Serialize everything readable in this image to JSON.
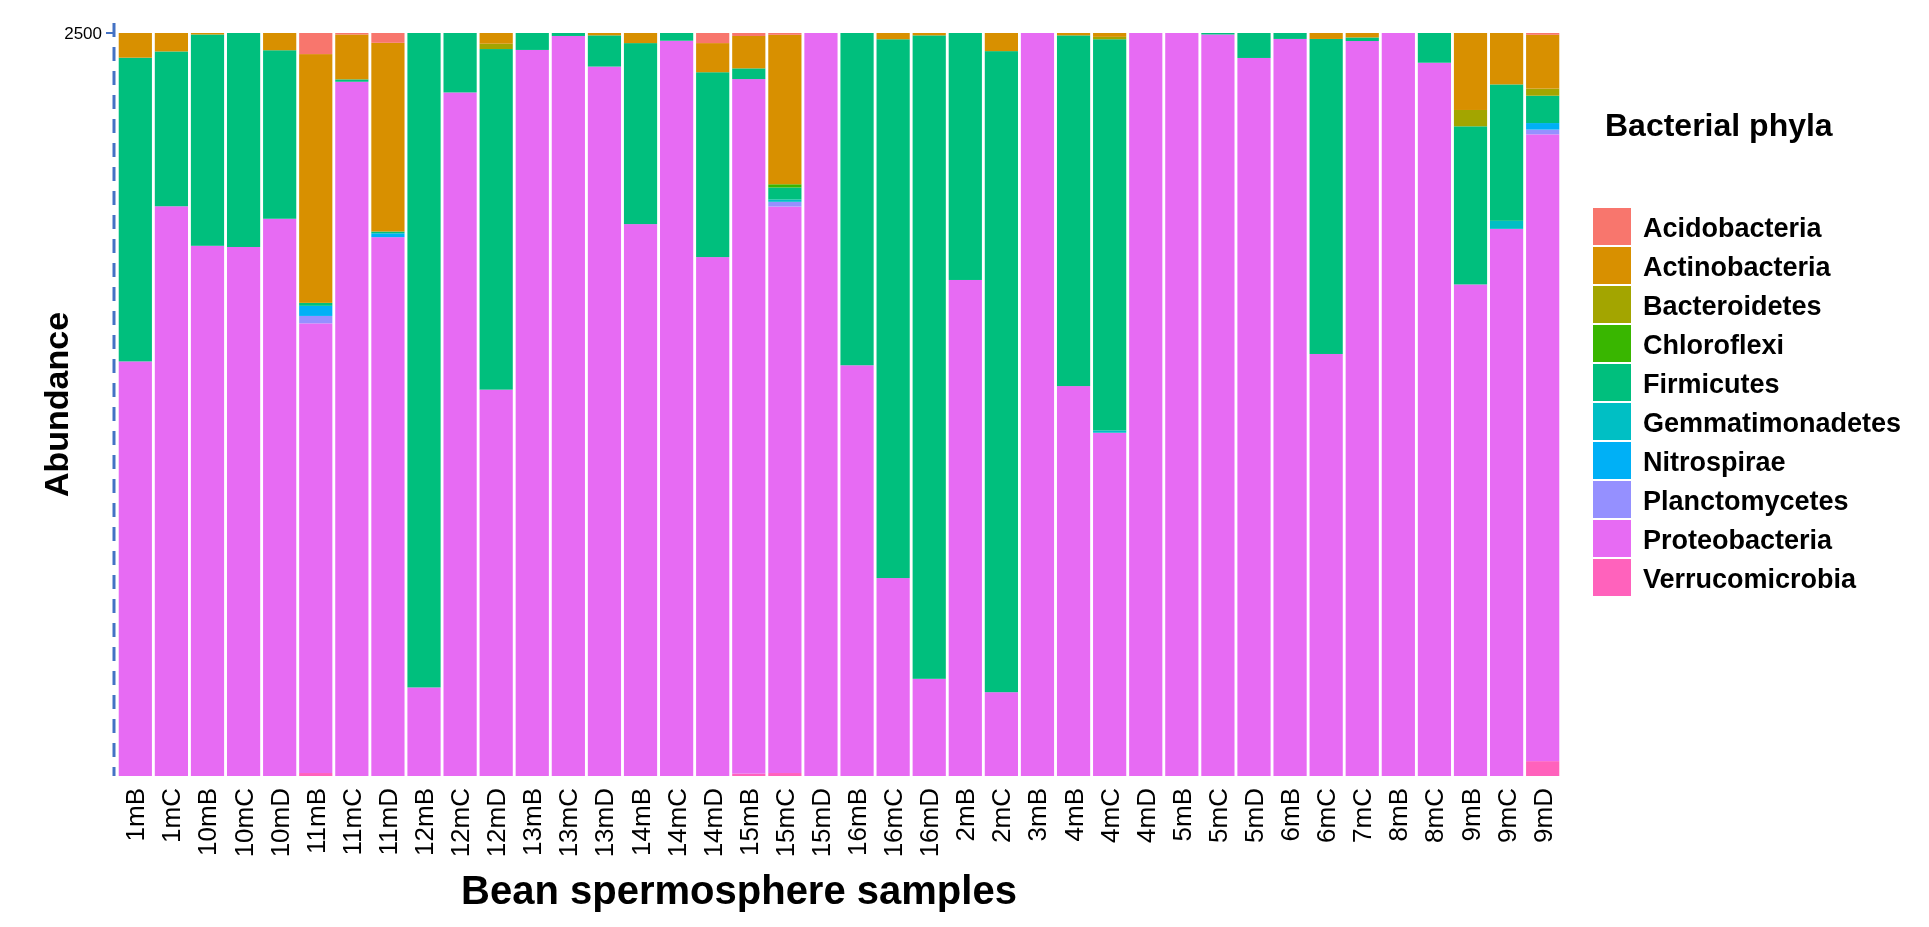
{
  "chart_data": {
    "type": "bar",
    "stacked": true,
    "xlabel": "Bean spermosphere samples",
    "ylabel": "Abundance",
    "legend_title": "Bacterial phyla",
    "legend": "right",
    "ylim": [
      0,
      2500
    ],
    "yticks": [
      2500
    ],
    "categories": [
      "1mB",
      "1mC",
      "10mB",
      "10mC",
      "10mD",
      "11mB",
      "11mC",
      "11mD",
      "12mB",
      "12mC",
      "12mD",
      "13mB",
      "13mC",
      "13mD",
      "14mB",
      "14mC",
      "14mD",
      "15mB",
      "15mC",
      "15mD",
      "16mB",
      "16mC",
      "16mD",
      "2mB",
      "2mC",
      "3mB",
      "4mB",
      "4mC",
      "4mD",
      "5mB",
      "5mC",
      "5mD",
      "6mB",
      "6mC",
      "7mC",
      "8mB",
      "8mC",
      "9mB",
      "9mC",
      "9mD"
    ],
    "series": [
      {
        "name": "Verrucomicrobia",
        "color": "#ff62bc",
        "values": [
          0,
          0,
          0,
          0,
          0,
          10,
          0,
          0,
          0,
          0,
          0,
          0,
          0,
          0,
          0,
          0,
          0,
          8,
          10,
          0,
          0,
          0,
          0,
          0,
          0,
          0,
          0,
          0,
          0,
          0,
          0,
          0,
          0,
          0,
          0,
          0,
          0,
          0,
          0,
          50
        ]
      },
      {
        "name": "Proteobacteria",
        "color": "#e76bf3",
        "values": [
          1395,
          1917,
          1784,
          1780,
          1875,
          1513,
          2336,
          1813,
          298,
          2300,
          1300,
          2443,
          2490,
          2387,
          1857,
          2474,
          1746,
          2337,
          1906,
          2500,
          1382,
          666,
          327,
          1669,
          282,
          2500,
          1312,
          1155,
          2500,
          2500,
          2495,
          2416,
          2480,
          1420,
          2473,
          2500,
          2400,
          1654,
          1841,
          2109
        ]
      },
      {
        "name": "Planctomycetes",
        "color": "#9590ff",
        "values": [
          0,
          0,
          0,
          0,
          0,
          25,
          0,
          0,
          0,
          0,
          0,
          0,
          0,
          0,
          0,
          0,
          0,
          0,
          16,
          0,
          0,
          0,
          0,
          0,
          0,
          0,
          0,
          0,
          0,
          0,
          0,
          0,
          0,
          0,
          0,
          0,
          0,
          0,
          0,
          16
        ]
      },
      {
        "name": "Nitrospirae",
        "color": "#00b0f6",
        "values": [
          0,
          0,
          0,
          0,
          0,
          34,
          0,
          13,
          0,
          0,
          0,
          0,
          0,
          0,
          0,
          0,
          0,
          0,
          0,
          0,
          0,
          0,
          0,
          0,
          0,
          0,
          0,
          0,
          0,
          0,
          0,
          0,
          0,
          0,
          0,
          0,
          0,
          0,
          0,
          22
        ]
      },
      {
        "name": "Gemmatimonadetes",
        "color": "#00bfc4",
        "values": [
          0,
          0,
          0,
          0,
          0,
          0,
          0,
          0,
          0,
          0,
          0,
          0,
          0,
          0,
          0,
          0,
          0,
          0,
          8,
          0,
          0,
          0,
          0,
          0,
          0,
          0,
          0,
          8,
          0,
          0,
          0,
          0,
          0,
          0,
          0,
          0,
          0,
          0,
          27,
          0
        ]
      },
      {
        "name": "Firmicutes",
        "color": "#00bf7d",
        "values": [
          1022,
          521,
          711,
          720,
          567,
          10,
          8,
          6,
          2202,
          200,
          1146,
          57,
          10,
          105,
          609,
          26,
          622,
          36,
          40,
          0,
          1118,
          1813,
          2165,
          831,
          2157,
          0,
          1180,
          1316,
          0,
          0,
          5,
          84,
          20,
          1060,
          12,
          0,
          100,
          532,
          459,
          92
        ]
      },
      {
        "name": "Chloroflexi",
        "color": "#39b600",
        "values": [
          0,
          0,
          0,
          0,
          0,
          0,
          0,
          0,
          0,
          0,
          0,
          0,
          0,
          0,
          0,
          0,
          0,
          0,
          11,
          0,
          0,
          0,
          0,
          0,
          0,
          0,
          0,
          0,
          0,
          0,
          0,
          0,
          0,
          0,
          0,
          0,
          0,
          0,
          0,
          0
        ]
      },
      {
        "name": "Bacteroidetes",
        "color": "#a3a500",
        "values": [
          0,
          0,
          0,
          0,
          0,
          0,
          0,
          0,
          0,
          0,
          18,
          0,
          0,
          0,
          0,
          0,
          0,
          0,
          0,
          0,
          0,
          0,
          0,
          0,
          0,
          0,
          0,
          8,
          0,
          0,
          0,
          0,
          0,
          0,
          0,
          0,
          0,
          55,
          0,
          24
        ]
      },
      {
        "name": "Actinobacteria",
        "color": "#d89000",
        "values": [
          83,
          62,
          5,
          0,
          58,
          837,
          151,
          635,
          0,
          0,
          36,
          0,
          0,
          8,
          34,
          0,
          98,
          109,
          503,
          0,
          0,
          21,
          8,
          0,
          61,
          0,
          8,
          13,
          0,
          0,
          0,
          0,
          0,
          20,
          15,
          0,
          0,
          259,
          173,
          181
        ]
      },
      {
        "name": "Acidobacteria",
        "color": "#f8766d",
        "values": [
          0,
          0,
          0,
          0,
          0,
          71,
          5,
          33,
          0,
          0,
          0,
          0,
          0,
          0,
          0,
          0,
          34,
          10,
          6,
          0,
          0,
          0,
          0,
          0,
          0,
          0,
          0,
          0,
          0,
          0,
          0,
          0,
          0,
          0,
          0,
          0,
          0,
          0,
          0,
          6
        ]
      }
    ]
  }
}
